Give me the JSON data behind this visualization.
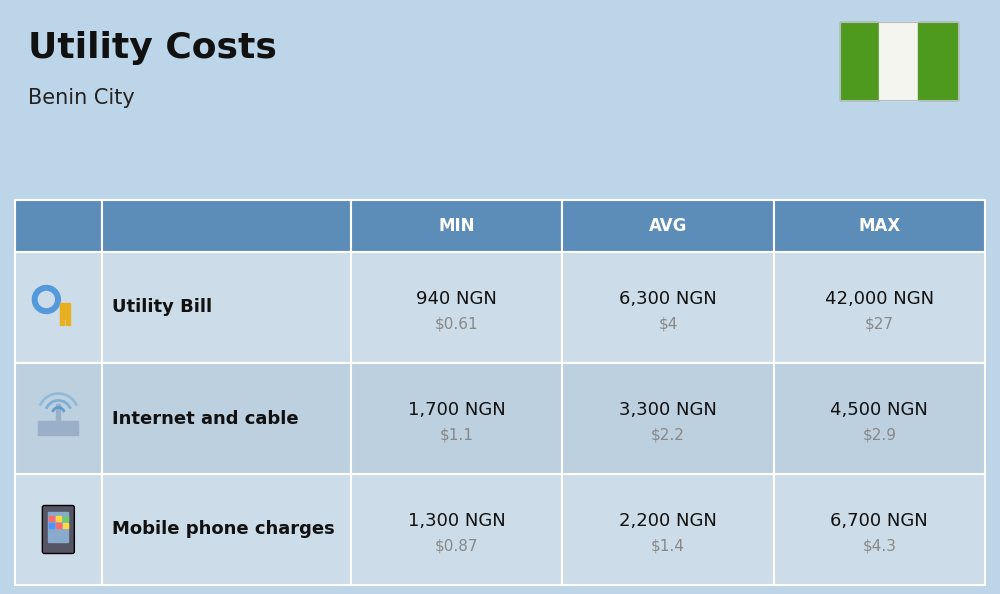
{
  "title": "Utility Costs",
  "subtitle": "Benin City",
  "background_color": "#bdd5e8",
  "header_bg_color": "#5b8db8",
  "header_text_color": "#ffffff",
  "row_bg_even": "#ccdde9",
  "row_bg_odd": "#bdd0e0",
  "cell_divider": "#ffffff",
  "header_labels": [
    "MIN",
    "AVG",
    "MAX"
  ],
  "rows": [
    {
      "label": "Utility Bill",
      "min_ngn": "940 NGN",
      "min_usd": "$0.61",
      "avg_ngn": "6,300 NGN",
      "avg_usd": "$4",
      "max_ngn": "42,000 NGN",
      "max_usd": "$27"
    },
    {
      "label": "Internet and cable",
      "min_ngn": "1,700 NGN",
      "min_usd": "$1.1",
      "avg_ngn": "3,300 NGN",
      "avg_usd": "$2.2",
      "max_ngn": "4,500 NGN",
      "max_usd": "$2.9"
    },
    {
      "label": "Mobile phone charges",
      "min_ngn": "1,300 NGN",
      "min_usd": "$0.87",
      "avg_ngn": "2,200 NGN",
      "avg_usd": "$1.4",
      "max_ngn": "6,700 NGN",
      "max_usd": "$4.3"
    }
  ],
  "nigeria_flag_green": "#4e9a1e",
  "nigeria_flag_white": "#f5f5f0",
  "title_color": "#111111",
  "subtitle_color": "#222222",
  "ngn_color": "#111111",
  "usd_color": "#888888",
  "title_fontsize": 26,
  "subtitle_fontsize": 15,
  "header_fontsize": 12,
  "cell_ngn_fontsize": 13,
  "cell_usd_fontsize": 11,
  "label_fontsize": 13
}
